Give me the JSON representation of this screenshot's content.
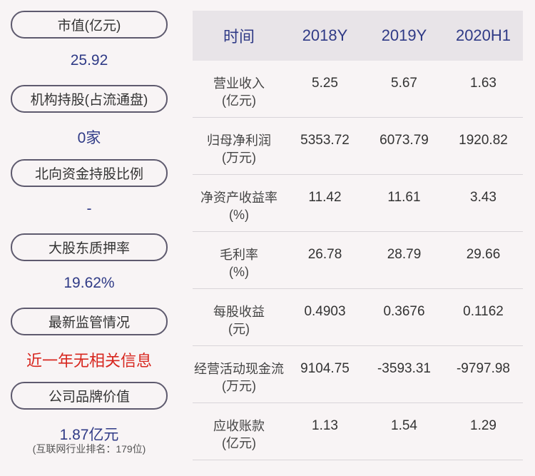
{
  "left_panel": {
    "items": [
      {
        "label": "市值(亿元)",
        "value": "25.92"
      },
      {
        "label": "机构持股(占流通盘)",
        "value": "0家"
      },
      {
        "label": "北向资金持股比例",
        "value": "-"
      },
      {
        "label": "大股东质押率",
        "value": "19.62%"
      },
      {
        "label": "最新监管情况",
        "value": "近一年无相关信息",
        "value_color": "#d7261e"
      },
      {
        "label": "公司品牌价值",
        "value": "1.87亿元",
        "note": "(互联网行业排名：179位)"
      }
    ]
  },
  "table": {
    "headers": [
      "时间",
      "2018Y",
      "2019Y",
      "2020H1"
    ],
    "rows": [
      {
        "label": "营业收入",
        "unit": "(亿元)",
        "values": [
          "5.25",
          "5.67",
          "1.63"
        ]
      },
      {
        "label": "归母净利润",
        "unit": "(万元)",
        "values": [
          "5353.72",
          "6073.79",
          "1920.82"
        ]
      },
      {
        "label": "净资产收益率",
        "unit": "(%)",
        "values": [
          "11.42",
          "11.61",
          "3.43"
        ]
      },
      {
        "label": "毛利率",
        "unit": "(%)",
        "values": [
          "26.78",
          "28.79",
          "29.66"
        ]
      },
      {
        "label": "每股收益",
        "unit": "(元)",
        "values": [
          "0.4903",
          "0.3676",
          "0.1162"
        ]
      },
      {
        "label": "经营活动现金流",
        "unit": "(万元)",
        "values": [
          "9104.75",
          "-3593.31",
          "-9797.98"
        ]
      },
      {
        "label": "应收账款",
        "unit": "(亿元)",
        "values": [
          "1.13",
          "1.54",
          "1.29"
        ]
      }
    ]
  },
  "colors": {
    "background": "#f8f4f5",
    "accent_blue": "#2f3a86",
    "alert_red": "#d7261e",
    "header_bg": "#e8e4e8"
  }
}
